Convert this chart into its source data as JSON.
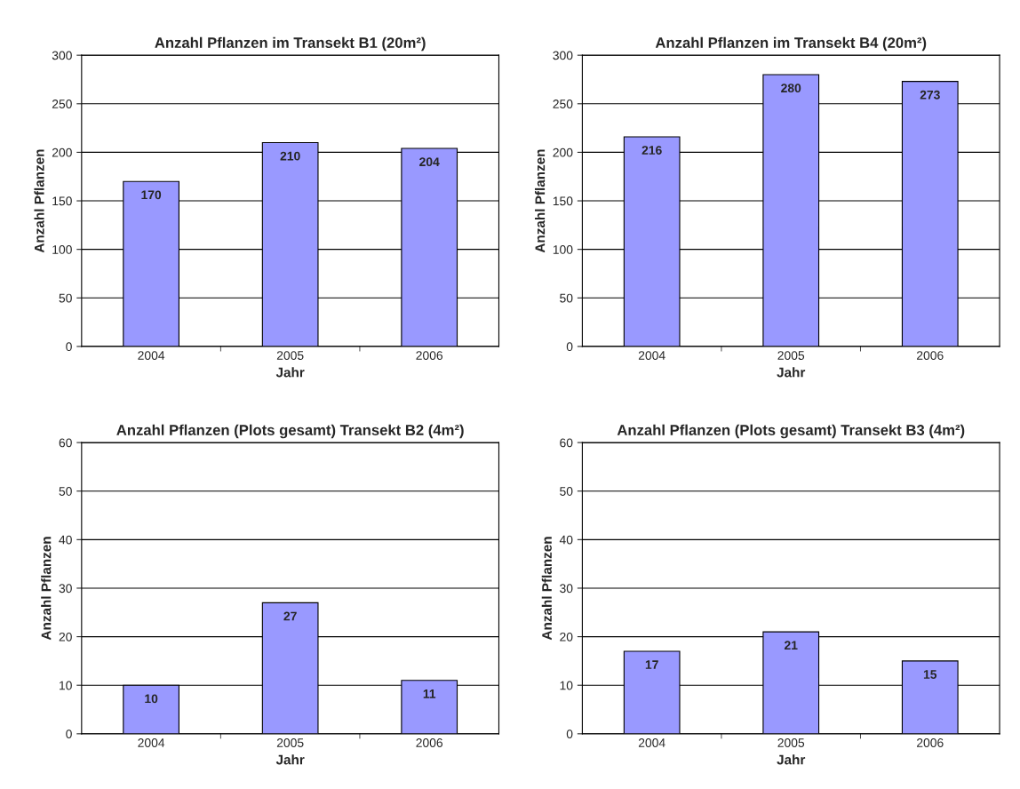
{
  "chart_data": [
    {
      "type": "bar",
      "title": "Anzahl Pflanzen im Transekt B1 (20m²)",
      "xlabel": "Jahr",
      "ylabel": "Anzahl Pflanzen",
      "categories": [
        "2004",
        "2005",
        "2006"
      ],
      "values": [
        170,
        210,
        204
      ],
      "color": "#9999ff",
      "ylim": [
        0,
        300
      ],
      "yticks": [
        0,
        50,
        100,
        150,
        200,
        250,
        300
      ],
      "grid": "y",
      "data_labels": true
    },
    {
      "type": "bar",
      "title": "Anzahl Pflanzen im Transekt B4 (20m²)",
      "xlabel": "Jahr",
      "ylabel": "Anzahl Pflanzen",
      "categories": [
        "2004",
        "2005",
        "2006"
      ],
      "values": [
        216,
        280,
        273
      ],
      "color": "#9999ff",
      "ylim": [
        0,
        300
      ],
      "yticks": [
        0,
        50,
        100,
        150,
        200,
        250,
        300
      ],
      "grid": "y",
      "data_labels": true
    },
    {
      "type": "bar",
      "title": "Anzahl Pflanzen (Plots gesamt) Transekt B2 (4m²)",
      "xlabel": "Jahr",
      "ylabel": "Anzahl Pflanzen",
      "categories": [
        "2004",
        "2005",
        "2006"
      ],
      "values": [
        10,
        27,
        11
      ],
      "color": "#9999ff",
      "ylim": [
        0,
        60
      ],
      "yticks": [
        0,
        10,
        20,
        30,
        40,
        50,
        60
      ],
      "grid": "y",
      "data_labels": true
    },
    {
      "type": "bar",
      "title": "Anzahl Pflanzen (Plots gesamt) Transekt B3 (4m²)",
      "xlabel": "Jahr",
      "ylabel": "Anzahl Pflanzen",
      "categories": [
        "2004",
        "2005",
        "2006"
      ],
      "values": [
        17,
        21,
        15
      ],
      "color": "#9999ff",
      "ylim": [
        0,
        60
      ],
      "yticks": [
        0,
        10,
        20,
        30,
        40,
        50,
        60
      ],
      "grid": "y",
      "data_labels": true
    }
  ]
}
